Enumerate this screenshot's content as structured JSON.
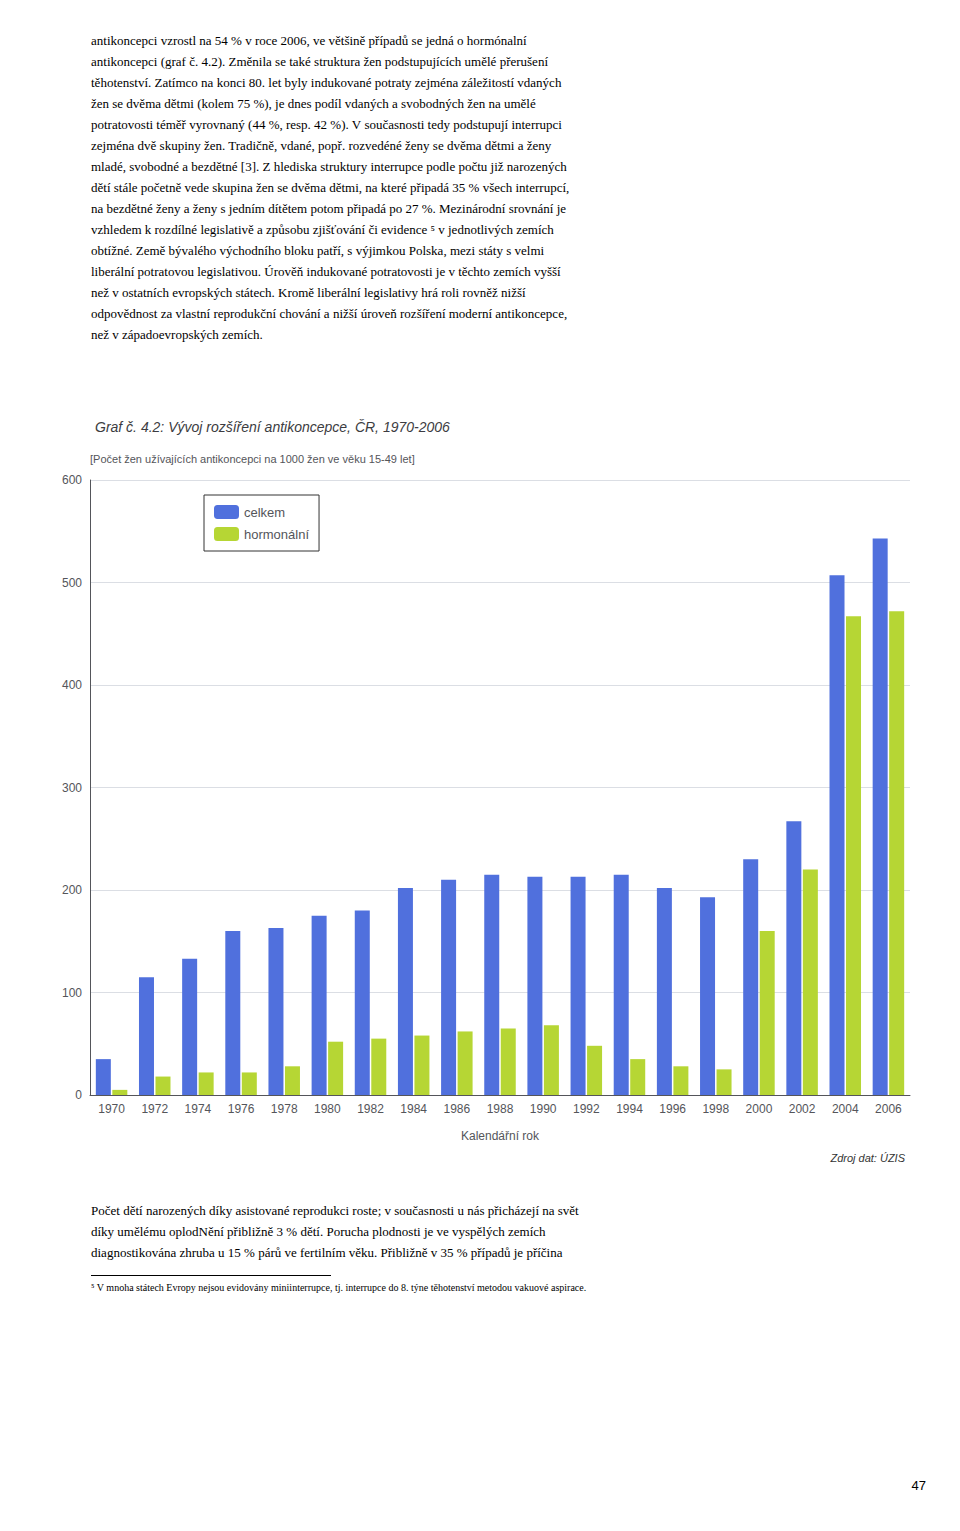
{
  "chart_data": {
    "type": "bar",
    "title": "Graf č. 4.2: Vývoj rozšíření antikoncepce, ČR, 1970-2006",
    "ylabel": "[Počet žen užívajících antikoncepci na 1000 žen ve věku 15-49 let]",
    "xlabel": "Kalendářní rok",
    "annotations": [
      "Zdroj dat: ÚZIS"
    ],
    "categories": [
      "1970",
      "1972",
      "1974",
      "1976",
      "1978",
      "1980",
      "1982",
      "1984",
      "1986",
      "1988",
      "1990",
      "1992",
      "1994",
      "1996",
      "1998",
      "2000",
      "2002",
      "2004",
      "2006"
    ],
    "series": [
      {
        "name": "celkem",
        "values": [
          35,
          115,
          133,
          160,
          163,
          175,
          180,
          202,
          210,
          215,
          213,
          213,
          215,
          202,
          193,
          230,
          267,
          507,
          543
        ]
      },
      {
        "name": "hormonální",
        "values": [
          5,
          18,
          22,
          22,
          28,
          52,
          55,
          58,
          62,
          65,
          68,
          48,
          35,
          28,
          25,
          160,
          220,
          467,
          472
        ]
      }
    ],
    "ylim": [
      0,
      600
    ],
    "yticks": [
      0,
      100,
      200,
      300,
      400,
      500,
      600
    ],
    "grid": true,
    "legend": "upper left"
  },
  "text_above": [
    "antikoncepci vzrostl na 54 % v roce 2006, ve většině případů se jedná o hormónalní",
    "antikoncepci (graf č. 4.2). Změnila se také struktura žen podstupujících umělé přerušení",
    "těhotenství. Zatímco na konci 80. let byly indukované potraty zejména záležitostí vdaných",
    "žen se dvěma dětmi (kolem 75 %), je dnes podíl vdaných a svobodných žen na umělé",
    "potratovosti téměř vyrovnaný (44 %, resp. 42 %). V současnosti tedy podstupují interrupci",
    "zejména dvě skupiny žen. Tradičně, vdané, popř. rozvedéné ženy se dvěma dětmi a ženy",
    "mladé, svobodné a bezdětné [3]. Z hlediska struktury interrupce podle počtu již narozených",
    "dětí stále početně vede skupina žen se dvěma dětmi, na které připadá 35 % všech interrupcí,",
    "na bezdětné ženy a ženy s jedním dítětem potom připadá po 27 %. Mezinárodní srovnání je",
    "vzhledem k rozdílné legislativě a způsobu zjišťování či evidence ⁵ v jednotlivých zemích",
    "obtížné. Země bývalého východního bloku patří, s výjimkou Polska, mezi státy s velmi",
    "liberální potratovou legislativou. Úrověň indukované potratovosti je v těchto zemích vyšší",
    "než v ostatních evropských státech. Kromě liberální legislativy hrá roli rovněž nižší",
    "odpovědnost za vlastní reprodukční chování a nižší úroveň rozšíření moderní antikoncepce,",
    "než v západoevropských zemích."
  ],
  "text_below": [
    "Počet dětí narozených díky asistované reprodukci roste; v současnosti u nás přicházejí na svět",
    "díky umělému oplodNění přibližně 3 % dětí. Porucha plodnosti je ve vyspělých zemích",
    "diagnostikována zhruba u 15 % párů ve fertilním věku. Přibližně v 35 % případů je příčina"
  ],
  "footnote": "⁵ V mnoha státech Evropy nejsou evidovány miniinterrupce, tj. interrupce do 8. týne těhotenství metodou vakuové aspirace.",
  "page_number": "47"
}
